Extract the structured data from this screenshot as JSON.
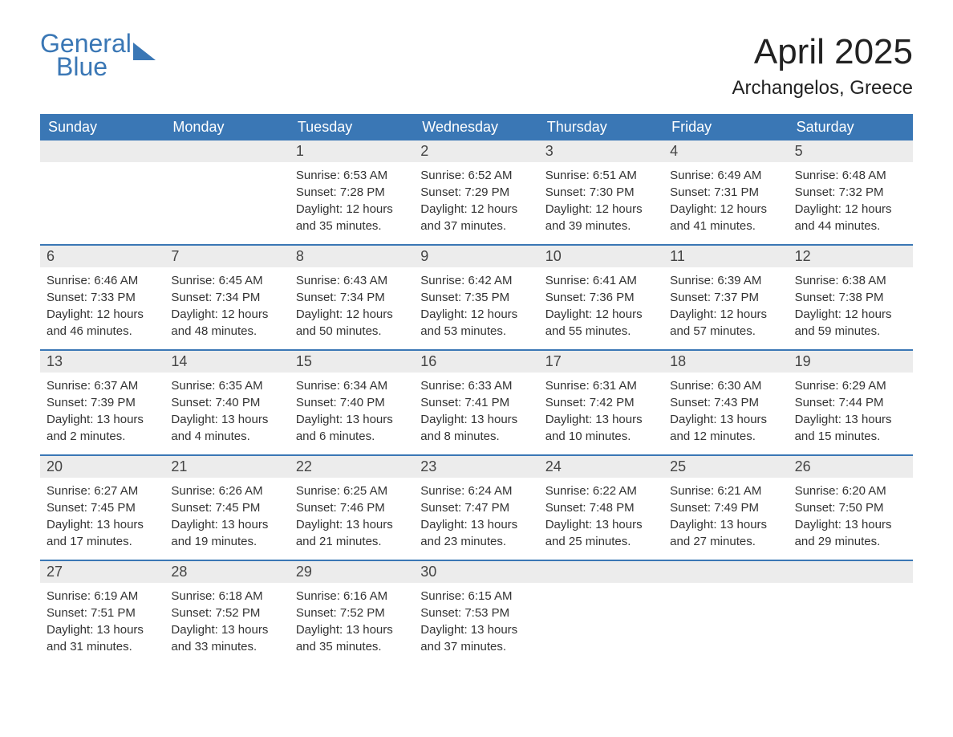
{
  "logo": {
    "line1": "General",
    "line2": "Blue",
    "color": "#3a77b5"
  },
  "title": "April 2025",
  "location": "Archangelos, Greece",
  "colors": {
    "header_bg": "#3a77b5",
    "header_text": "#ffffff",
    "daynum_bg": "#ececec",
    "border": "#3a77b5",
    "body_text": "#333333"
  },
  "weekdays": [
    "Sunday",
    "Monday",
    "Tuesday",
    "Wednesday",
    "Thursday",
    "Friday",
    "Saturday"
  ],
  "weeks": [
    [
      {
        "day": "",
        "lines": []
      },
      {
        "day": "",
        "lines": []
      },
      {
        "day": "1",
        "lines": [
          "Sunrise: 6:53 AM",
          "Sunset: 7:28 PM",
          "Daylight: 12 hours and 35 minutes."
        ]
      },
      {
        "day": "2",
        "lines": [
          "Sunrise: 6:52 AM",
          "Sunset: 7:29 PM",
          "Daylight: 12 hours and 37 minutes."
        ]
      },
      {
        "day": "3",
        "lines": [
          "Sunrise: 6:51 AM",
          "Sunset: 7:30 PM",
          "Daylight: 12 hours and 39 minutes."
        ]
      },
      {
        "day": "4",
        "lines": [
          "Sunrise: 6:49 AM",
          "Sunset: 7:31 PM",
          "Daylight: 12 hours and 41 minutes."
        ]
      },
      {
        "day": "5",
        "lines": [
          "Sunrise: 6:48 AM",
          "Sunset: 7:32 PM",
          "Daylight: 12 hours and 44 minutes."
        ]
      }
    ],
    [
      {
        "day": "6",
        "lines": [
          "Sunrise: 6:46 AM",
          "Sunset: 7:33 PM",
          "Daylight: 12 hours and 46 minutes."
        ]
      },
      {
        "day": "7",
        "lines": [
          "Sunrise: 6:45 AM",
          "Sunset: 7:34 PM",
          "Daylight: 12 hours and 48 minutes."
        ]
      },
      {
        "day": "8",
        "lines": [
          "Sunrise: 6:43 AM",
          "Sunset: 7:34 PM",
          "Daylight: 12 hours and 50 minutes."
        ]
      },
      {
        "day": "9",
        "lines": [
          "Sunrise: 6:42 AM",
          "Sunset: 7:35 PM",
          "Daylight: 12 hours and 53 minutes."
        ]
      },
      {
        "day": "10",
        "lines": [
          "Sunrise: 6:41 AM",
          "Sunset: 7:36 PM",
          "Daylight: 12 hours and 55 minutes."
        ]
      },
      {
        "day": "11",
        "lines": [
          "Sunrise: 6:39 AM",
          "Sunset: 7:37 PM",
          "Daylight: 12 hours and 57 minutes."
        ]
      },
      {
        "day": "12",
        "lines": [
          "Sunrise: 6:38 AM",
          "Sunset: 7:38 PM",
          "Daylight: 12 hours and 59 minutes."
        ]
      }
    ],
    [
      {
        "day": "13",
        "lines": [
          "Sunrise: 6:37 AM",
          "Sunset: 7:39 PM",
          "Daylight: 13 hours and 2 minutes."
        ]
      },
      {
        "day": "14",
        "lines": [
          "Sunrise: 6:35 AM",
          "Sunset: 7:40 PM",
          "Daylight: 13 hours and 4 minutes."
        ]
      },
      {
        "day": "15",
        "lines": [
          "Sunrise: 6:34 AM",
          "Sunset: 7:40 PM",
          "Daylight: 13 hours and 6 minutes."
        ]
      },
      {
        "day": "16",
        "lines": [
          "Sunrise: 6:33 AM",
          "Sunset: 7:41 PM",
          "Daylight: 13 hours and 8 minutes."
        ]
      },
      {
        "day": "17",
        "lines": [
          "Sunrise: 6:31 AM",
          "Sunset: 7:42 PM",
          "Daylight: 13 hours and 10 minutes."
        ]
      },
      {
        "day": "18",
        "lines": [
          "Sunrise: 6:30 AM",
          "Sunset: 7:43 PM",
          "Daylight: 13 hours and 12 minutes."
        ]
      },
      {
        "day": "19",
        "lines": [
          "Sunrise: 6:29 AM",
          "Sunset: 7:44 PM",
          "Daylight: 13 hours and 15 minutes."
        ]
      }
    ],
    [
      {
        "day": "20",
        "lines": [
          "Sunrise: 6:27 AM",
          "Sunset: 7:45 PM",
          "Daylight: 13 hours and 17 minutes."
        ]
      },
      {
        "day": "21",
        "lines": [
          "Sunrise: 6:26 AM",
          "Sunset: 7:45 PM",
          "Daylight: 13 hours and 19 minutes."
        ]
      },
      {
        "day": "22",
        "lines": [
          "Sunrise: 6:25 AM",
          "Sunset: 7:46 PM",
          "Daylight: 13 hours and 21 minutes."
        ]
      },
      {
        "day": "23",
        "lines": [
          "Sunrise: 6:24 AM",
          "Sunset: 7:47 PM",
          "Daylight: 13 hours and 23 minutes."
        ]
      },
      {
        "day": "24",
        "lines": [
          "Sunrise: 6:22 AM",
          "Sunset: 7:48 PM",
          "Daylight: 13 hours and 25 minutes."
        ]
      },
      {
        "day": "25",
        "lines": [
          "Sunrise: 6:21 AM",
          "Sunset: 7:49 PM",
          "Daylight: 13 hours and 27 minutes."
        ]
      },
      {
        "day": "26",
        "lines": [
          "Sunrise: 6:20 AM",
          "Sunset: 7:50 PM",
          "Daylight: 13 hours and 29 minutes."
        ]
      }
    ],
    [
      {
        "day": "27",
        "lines": [
          "Sunrise: 6:19 AM",
          "Sunset: 7:51 PM",
          "Daylight: 13 hours and 31 minutes."
        ]
      },
      {
        "day": "28",
        "lines": [
          "Sunrise: 6:18 AM",
          "Sunset: 7:52 PM",
          "Daylight: 13 hours and 33 minutes."
        ]
      },
      {
        "day": "29",
        "lines": [
          "Sunrise: 6:16 AM",
          "Sunset: 7:52 PM",
          "Daylight: 13 hours and 35 minutes."
        ]
      },
      {
        "day": "30",
        "lines": [
          "Sunrise: 6:15 AM",
          "Sunset: 7:53 PM",
          "Daylight: 13 hours and 37 minutes."
        ]
      },
      {
        "day": "",
        "lines": []
      },
      {
        "day": "",
        "lines": []
      },
      {
        "day": "",
        "lines": []
      }
    ]
  ]
}
